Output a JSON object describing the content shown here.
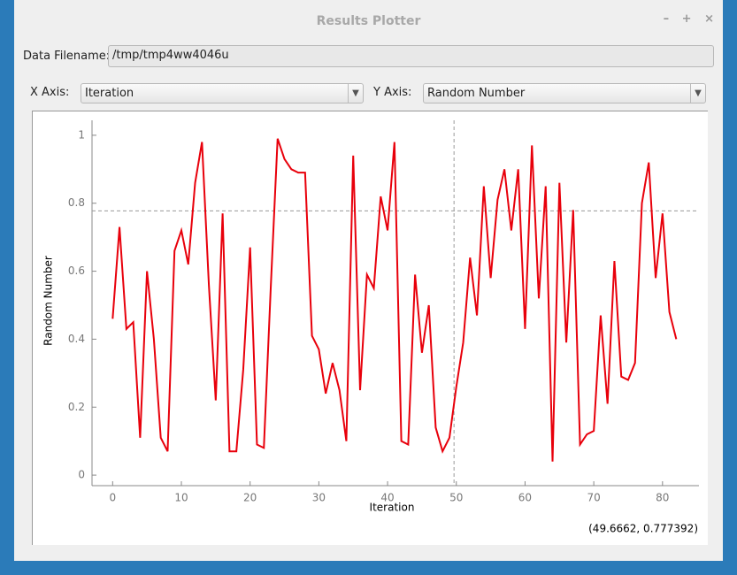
{
  "window": {
    "title": "Results Plotter",
    "buttons": [
      "–",
      "+",
      "×"
    ]
  },
  "controls": {
    "filename_label": "Data Filename:",
    "filename": "/tmp/tmp4ww4046u",
    "x_axis_label": "X Axis:",
    "x_axis_value": "Iteration",
    "y_axis_label": "Y Axis:",
    "y_axis_value": "Random Number"
  },
  "chart_data": {
    "type": "line",
    "xlabel": "Iteration",
    "ylabel": "Random Number",
    "x": [
      0,
      1,
      2,
      3,
      4,
      5,
      6,
      7,
      8,
      9,
      10,
      11,
      12,
      13,
      14,
      15,
      16,
      17,
      18,
      19,
      20,
      21,
      22,
      23,
      24,
      25,
      26,
      27,
      28,
      29,
      30,
      31,
      32,
      33,
      34,
      35,
      36,
      37,
      38,
      39,
      40,
      41,
      42,
      43,
      44,
      45,
      46,
      47,
      48,
      49,
      50,
      51,
      52,
      53,
      54,
      55,
      56,
      57,
      58,
      59,
      60,
      61,
      62,
      63,
      64,
      65,
      66,
      67,
      68,
      69,
      70,
      71,
      72,
      73,
      74,
      75,
      76,
      77,
      78,
      79,
      80,
      81,
      82
    ],
    "series": [
      {
        "color": "#e8000b",
        "values": [
          0.46,
          0.73,
          0.43,
          0.45,
          0.11,
          0.6,
          0.4,
          0.11,
          0.07,
          0.66,
          0.72,
          0.62,
          0.86,
          0.98,
          0.56,
          0.22,
          0.77,
          0.07,
          0.07,
          0.31,
          0.67,
          0.09,
          0.08,
          0.55,
          0.99,
          0.93,
          0.9,
          0.89,
          0.89,
          0.41,
          0.37,
          0.24,
          0.33,
          0.25,
          0.1,
          0.94,
          0.25,
          0.59,
          0.55,
          0.82,
          0.72,
          0.98,
          0.1,
          0.09,
          0.59,
          0.36,
          0.5,
          0.14,
          0.07,
          0.11,
          0.26,
          0.39,
          0.64,
          0.47,
          0.85,
          0.58,
          0.81,
          0.9,
          0.72,
          0.9,
          0.43,
          0.97,
          0.52,
          0.85,
          0.04,
          0.86,
          0.39,
          0.78,
          0.09,
          0.12,
          0.13,
          0.47,
          0.21,
          0.63,
          0.29,
          0.28,
          0.33,
          0.8,
          0.92,
          0.58,
          0.77,
          0.48,
          0.4
        ]
      }
    ],
    "xlim": [
      -3,
      85.3
    ],
    "ylim": [
      -0.031,
      1.044
    ],
    "xticks": [
      0,
      10,
      20,
      30,
      40,
      50,
      60,
      70,
      80
    ],
    "yticks": [
      0,
      0.2,
      0.4,
      0.6,
      0.8,
      1
    ],
    "grid": false,
    "crosshair": {
      "x": 49.6662,
      "y": 0.777392,
      "label": "(49.6662, 0.777392)"
    }
  }
}
